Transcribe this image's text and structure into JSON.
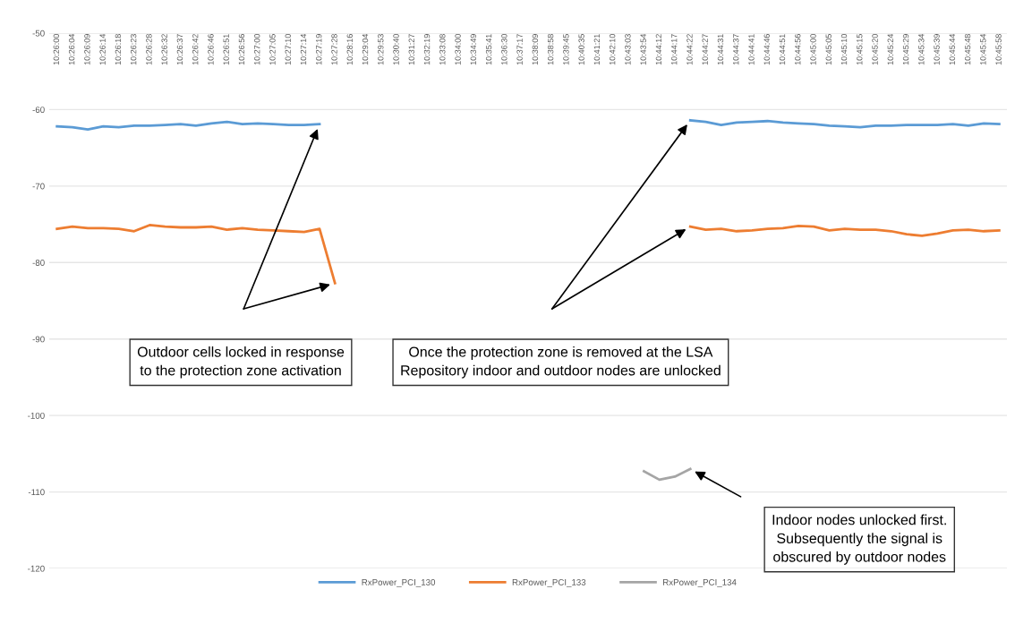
{
  "chart_data": {
    "type": "line",
    "categories": [
      "10:26:00",
      "10:26:04",
      "10:26:09",
      "10:26:14",
      "10:26:18",
      "10:26:23",
      "10:26:28",
      "10:26:32",
      "10:26:37",
      "10:26:42",
      "10:26:46",
      "10:26:51",
      "10:26:56",
      "10:27:00",
      "10:27:05",
      "10:27:10",
      "10:27:14",
      "10:27:19",
      "10:27:28",
      "10:28:16",
      "10:29:04",
      "10:29:53",
      "10:30:40",
      "10:31:27",
      "10:32:19",
      "10:33:08",
      "10:34:00",
      "10:34:49",
      "10:35:41",
      "10:36:30",
      "10:37:17",
      "10:38:09",
      "10:38:58",
      "10:39:45",
      "10:40:35",
      "10:41:21",
      "10:42:10",
      "10:43:03",
      "10:43:54",
      "10:44:12",
      "10:44:17",
      "10:44:22",
      "10:44:27",
      "10:44:31",
      "10:44:37",
      "10:44:41",
      "10:44:46",
      "10:44:51",
      "10:44:56",
      "10:45:00",
      "10:45:05",
      "10:45:10",
      "10:45:15",
      "10:45:20",
      "10:45:24",
      "10:45:29",
      "10:45:34",
      "10:45:39",
      "10:45:44",
      "10:45:48",
      "10:45:54",
      "10:45:58"
    ],
    "series": [
      {
        "name": "RxPower_PCI_130",
        "color": "#5b9bd5",
        "values": [
          -62.2,
          -62.3,
          -62.6,
          -62.2,
          -62.3,
          -62.1,
          -62.1,
          -62.0,
          -61.9,
          -62.1,
          -61.8,
          -61.6,
          -61.9,
          -61.8,
          -61.9,
          -62.0,
          -62.0,
          -61.9,
          null,
          null,
          null,
          null,
          null,
          null,
          null,
          null,
          null,
          null,
          null,
          null,
          null,
          null,
          null,
          null,
          null,
          null,
          null,
          null,
          null,
          null,
          null,
          -61.4,
          -61.6,
          -62.0,
          -61.7,
          -61.6,
          -61.5,
          -61.7,
          -61.8,
          -61.9,
          -62.1,
          -62.2,
          -62.3,
          -62.1,
          -62.1,
          -62.0,
          -62.0,
          -62.0,
          -61.9,
          -62.1,
          -61.8,
          -61.9
        ]
      },
      {
        "name": "RxPower_PCI_133",
        "color": "#ed7d31",
        "values": [
          -75.6,
          -75.3,
          -75.5,
          -75.5,
          -75.6,
          -75.9,
          -75.1,
          -75.3,
          -75.4,
          -75.4,
          -75.3,
          -75.7,
          -75.5,
          -75.7,
          -75.8,
          -75.9,
          -76.0,
          -75.6,
          -82.7,
          null,
          null,
          null,
          null,
          null,
          null,
          null,
          null,
          null,
          null,
          null,
          null,
          null,
          null,
          null,
          null,
          null,
          null,
          null,
          null,
          null,
          null,
          -75.3,
          -75.7,
          -75.6,
          -75.9,
          -75.8,
          -75.6,
          -75.5,
          -75.2,
          -75.3,
          -75.8,
          -75.6,
          -75.7,
          -75.7,
          -75.9,
          -76.3,
          -76.5,
          -76.2,
          -75.8,
          -75.7,
          -75.9,
          -75.8
        ]
      },
      {
        "name": "RxPower_PCI_134",
        "color": "#a5a5a5",
        "values": [
          null,
          null,
          null,
          null,
          null,
          null,
          null,
          null,
          null,
          null,
          null,
          null,
          null,
          null,
          null,
          null,
          null,
          null,
          null,
          null,
          null,
          null,
          null,
          null,
          null,
          null,
          null,
          null,
          null,
          null,
          null,
          null,
          null,
          null,
          null,
          null,
          null,
          null,
          -107.3,
          -108.4,
          -108.0,
          -107.0,
          null,
          null,
          null,
          null,
          null,
          null,
          null,
          null,
          null,
          null,
          null,
          null,
          null,
          null,
          null,
          null,
          null,
          null,
          null,
          null
        ]
      }
    ],
    "ylim": [
      -120,
      -50
    ],
    "yticks": [
      -120,
      -110,
      -100,
      -90,
      -80,
      -70,
      -60,
      -50
    ],
    "grid": "y",
    "legend": "bottom",
    "annotations": [
      "Outdoor cells locked in response to the protection zone activation",
      "Once the protection zone is removed at the LSA Repository indoor and outdoor nodes are unlocked",
      "Indoor nodes unlocked first. Subsequently the signal is obscured by outdoor nodes"
    ]
  }
}
